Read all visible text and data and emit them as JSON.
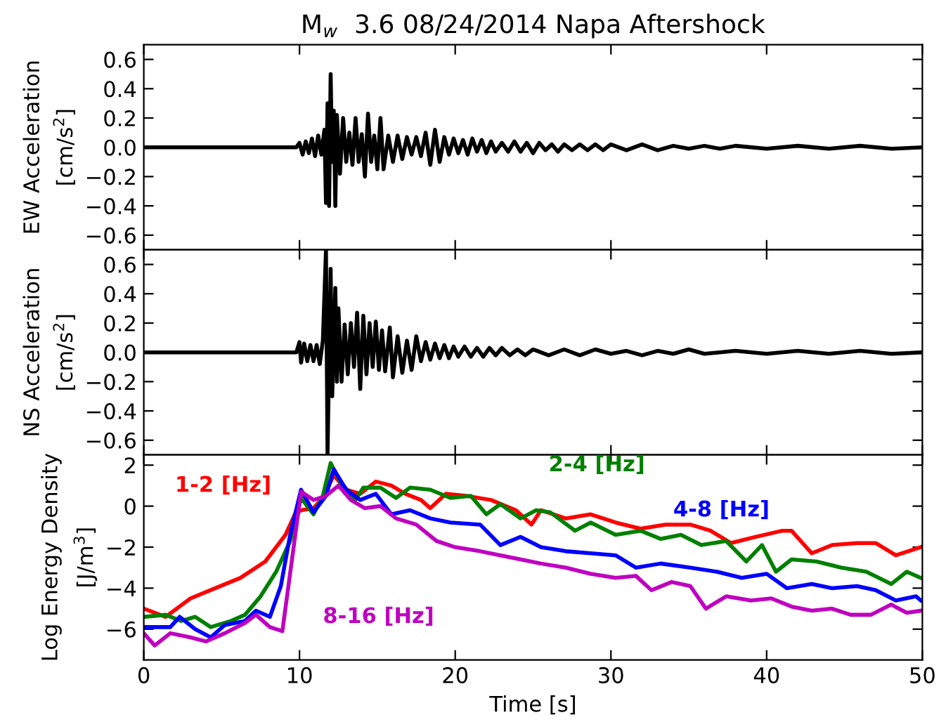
{
  "chart_data": [
    {
      "type": "line",
      "title": "M$_{w}$  3.6 08/24/2014 Napa Aftershock",
      "ylabel": "EW Acceleration\n[cm/s$^{2}$]",
      "xlim": [
        0,
        50
      ],
      "xticks": [
        0,
        10,
        20,
        30,
        40,
        50
      ],
      "ylim": [
        -0.7,
        0.7
      ],
      "yticks": [
        {
          "value": -0.6,
          "label": "−0.6"
        },
        {
          "value": -0.4,
          "label": "−0.4"
        },
        {
          "value": -0.2,
          "label": "−0.2"
        },
        {
          "value": 0,
          "label": "0.0"
        },
        {
          "value": 0.2,
          "label": "0.2"
        },
        {
          "value": 0.4,
          "label": "0.4"
        },
        {
          "value": 0.6,
          "label": "0.6"
        }
      ],
      "tick_labels": "y",
      "grid": false,
      "legend": false,
      "series": [
        {
          "color": "#000000",
          "x": [
            0,
            9.8,
            10.0,
            10.2,
            10.4,
            10.6,
            10.8,
            11.0,
            11.2,
            11.4,
            11.6,
            11.7,
            11.8,
            11.9,
            12.0,
            12.1,
            12.2,
            12.3,
            12.4,
            12.6,
            12.8,
            13.0,
            13.2,
            13.4,
            13.6,
            13.8,
            14.0,
            14.2,
            14.4,
            14.6,
            14.8,
            15.0,
            15.2,
            15.4,
            15.7,
            16.0,
            16.3,
            16.6,
            16.9,
            17.2,
            17.5,
            17.8,
            18.1,
            18.4,
            18.7,
            19.0,
            19.3,
            19.6,
            19.9,
            20.2,
            20.5,
            20.8,
            21.1,
            21.4,
            21.7,
            22.0,
            22.3,
            22.6,
            23.0,
            23.4,
            23.8,
            24.2,
            24.6,
            25.0,
            25.4,
            25.8,
            26.2,
            26.6,
            27.0,
            27.5,
            28.0,
            28.5,
            29.0,
            29.5,
            30,
            31,
            32,
            33,
            34,
            35,
            36,
            37,
            38,
            40,
            42,
            44,
            46,
            48,
            50
          ],
          "values": [
            0,
            0,
            0.03,
            -0.05,
            0.04,
            -0.04,
            0.06,
            -0.06,
            0.08,
            -0.05,
            0.12,
            -0.38,
            0.3,
            -0.4,
            0.5,
            -0.1,
            0.25,
            -0.4,
            0.22,
            -0.18,
            0.2,
            -0.1,
            0.1,
            -0.12,
            0.2,
            -0.1,
            0.09,
            -0.2,
            0.23,
            -0.1,
            0.08,
            -0.15,
            0.2,
            -0.15,
            0.08,
            -0.1,
            0.08,
            -0.08,
            0.07,
            -0.05,
            0.07,
            -0.06,
            0.1,
            -0.12,
            0.12,
            -0.1,
            0.07,
            -0.05,
            0.06,
            -0.04,
            0.05,
            -0.05,
            0.06,
            -0.03,
            0.05,
            -0.04,
            0.04,
            -0.03,
            0.03,
            -0.03,
            0.04,
            -0.03,
            0.03,
            -0.04,
            0.03,
            -0.02,
            0.02,
            -0.03,
            0.02,
            -0.02,
            0.02,
            -0.02,
            0.02,
            -0.02,
            0.02,
            -0.02,
            0.02,
            -0.02,
            0.01,
            -0.01,
            0.01,
            -0.01,
            0.01,
            -0.01,
            0.01,
            -0.01,
            0.01,
            -0.01,
            0
          ]
        }
      ]
    },
    {
      "type": "line",
      "ylabel": "NS Acceleration\n[cm/s$^{2}$]",
      "xlim": [
        0,
        50
      ],
      "xticks": [
        0,
        10,
        20,
        30,
        40,
        50
      ],
      "ylim": [
        -0.7,
        0.7
      ],
      "yticks": [
        {
          "value": -0.6,
          "label": "−0.6"
        },
        {
          "value": -0.4,
          "label": "−0.4"
        },
        {
          "value": -0.2,
          "label": "−0.2"
        },
        {
          "value": 0,
          "label": "0.0"
        },
        {
          "value": 0.2,
          "label": "0.2"
        },
        {
          "value": 0.4,
          "label": "0.4"
        },
        {
          "value": 0.6,
          "label": "0.6"
        }
      ],
      "tick_labels": "y",
      "grid": false,
      "legend": false,
      "series": [
        {
          "color": "#000000",
          "x": [
            0,
            9.8,
            10.0,
            10.1,
            10.3,
            10.5,
            10.7,
            10.9,
            11.1,
            11.3,
            11.5,
            11.7,
            11.8,
            12.0,
            12.1,
            12.3,
            12.4,
            12.5,
            12.7,
            12.9,
            13.1,
            13.3,
            13.5,
            13.7,
            13.9,
            14.1,
            14.3,
            14.5,
            14.7,
            14.9,
            15.1,
            15.3,
            15.5,
            15.8,
            16.0,
            16.3,
            16.6,
            16.9,
            17.2,
            17.5,
            17.8,
            18.1,
            18.4,
            18.7,
            19.0,
            19.3,
            19.6,
            19.9,
            20.2,
            20.6,
            21.0,
            21.4,
            21.8,
            22.2,
            22.6,
            23.0,
            23.5,
            24.0,
            24.5,
            25,
            26,
            27,
            28,
            29,
            30,
            31,
            32,
            33,
            34,
            35,
            36,
            38,
            40,
            42,
            44,
            46,
            48,
            50
          ],
          "values": [
            0,
            0,
            0.07,
            -0.07,
            0.06,
            -0.06,
            0.05,
            -0.06,
            0.05,
            -0.08,
            0.08,
            0.7,
            -0.7,
            0.57,
            -0.3,
            0.44,
            -0.2,
            0.3,
            -0.2,
            0.19,
            -0.15,
            0.2,
            -0.1,
            0.27,
            -0.25,
            0.25,
            -0.15,
            0.2,
            -0.1,
            0.21,
            -0.12,
            0.15,
            -0.13,
            0.17,
            -0.17,
            0.11,
            -0.14,
            0.08,
            -0.12,
            0.11,
            -0.06,
            0.07,
            -0.05,
            0.06,
            -0.04,
            0.05,
            -0.04,
            0.04,
            -0.03,
            0.04,
            -0.03,
            0.03,
            -0.03,
            0.03,
            -0.02,
            0.03,
            -0.02,
            0.02,
            -0.02,
            0.02,
            -0.02,
            0.02,
            -0.02,
            0.02,
            -0.01,
            0.01,
            -0.02,
            0.01,
            -0.01,
            0.02,
            -0.01,
            0.01,
            -0.01,
            0.01,
            -0.01,
            0.01,
            -0.01,
            0
          ]
        }
      ]
    },
    {
      "type": "line",
      "xlabel": "Time [s]",
      "ylabel": "Log Energy Density\n[J/m$^{3}$]",
      "xlim": [
        0,
        50
      ],
      "xticks": [
        0,
        10,
        20,
        30,
        40,
        50
      ],
      "ylim": [
        -7.5,
        2.5
      ],
      "yticks": [
        -6,
        -4,
        -2,
        0,
        2
      ],
      "grid": false,
      "legend": false,
      "series": [
        {
          "name": "1-2 [Hz]",
          "color": "#ff0000",
          "x": [
            0,
            1.4,
            3,
            4.6,
            6.2,
            7.8,
            9.1,
            9.7,
            10.1,
            10.9,
            11.5,
            12.2,
            13,
            13.9,
            14.9,
            15.9,
            16.8,
            17.8,
            18.4,
            19.4,
            20.7,
            22.3,
            23.9,
            24.9,
            25.5,
            27.1,
            28.7,
            30.3,
            31.9,
            33.5,
            35.1,
            36.4,
            37.7,
            39.3,
            41,
            41.6,
            42.9,
            44.2,
            45.8,
            47,
            48.3,
            49.9
          ],
          "values": [
            -5.0,
            -5.4,
            -4.5,
            -4.0,
            -3.5,
            -2.7,
            -1.4,
            -0.4,
            -0.2,
            -0.1,
            0.4,
            1.5,
            0.8,
            0.6,
            1.2,
            1.0,
            0.6,
            0.3,
            -0.1,
            0.6,
            0.5,
            0.3,
            -0.2,
            -0.9,
            -0.2,
            -0.6,
            -0.4,
            -0.8,
            -1.1,
            -0.9,
            -0.9,
            -1.2,
            -1.8,
            -1.5,
            -1.2,
            -1.2,
            -2.3,
            -1.9,
            -1.8,
            -1.8,
            -2.4,
            -2.0
          ]
        },
        {
          "name": "2-4 [Hz]",
          "color": "#008000",
          "x": [
            0,
            1.4,
            2.4,
            3.3,
            4.3,
            5.6,
            6.5,
            7.5,
            8.5,
            9.4,
            10.1,
            10.9,
            11.5,
            12,
            12.6,
            13.6,
            14.1,
            15.2,
            16.2,
            17.1,
            18.4,
            19.7,
            21,
            22,
            22.9,
            24.2,
            25.2,
            26.1,
            27.7,
            28.7,
            30.3,
            31.9,
            33.2,
            34.5,
            35.8,
            37.4,
            38.7,
            39.7,
            40.6,
            41.6,
            43.2,
            44.8,
            46.4,
            48,
            49,
            49.9
          ],
          "values": [
            -5.4,
            -5.3,
            -5.6,
            -5.4,
            -5.9,
            -5.6,
            -5.3,
            -4.4,
            -3.2,
            -1.7,
            0.4,
            -0.4,
            0.5,
            2.1,
            1.2,
            0.3,
            0.9,
            0.9,
            0.4,
            0.9,
            0.8,
            0.4,
            0.5,
            -0.4,
            0.1,
            -0.6,
            -0.2,
            -0.3,
            -1.2,
            -0.8,
            -1.4,
            -1.2,
            -1.6,
            -1.4,
            -1.9,
            -1.7,
            -2.7,
            -1.9,
            -3.2,
            -2.6,
            -2.7,
            -3.0,
            -3.2,
            -3.8,
            -3.2,
            -3.5
          ]
        },
        {
          "name": "4-8 [Hz]",
          "color": "#0000ff",
          "x": [
            0,
            1.7,
            2.3,
            3.3,
            4.3,
            5.2,
            6.5,
            7.2,
            8.1,
            8.8,
            9.4,
            10.1,
            10.9,
            11.7,
            12.2,
            13,
            13.9,
            14.9,
            15.9,
            17.1,
            18.4,
            19.7,
            21.6,
            22.9,
            24.2,
            25.5,
            27.1,
            28.7,
            30.3,
            31.6,
            33.2,
            35.1,
            36.8,
            38.4,
            40,
            41.3,
            42.9,
            44.2,
            45.8,
            47,
            48.3,
            49.6,
            49.9
          ],
          "values": [
            -5.9,
            -5.9,
            -5.4,
            -6.0,
            -6.4,
            -5.8,
            -5.6,
            -5.1,
            -5.4,
            -3.9,
            -1.4,
            0.8,
            -0.3,
            0.5,
            1.8,
            0.8,
            0.3,
            0.6,
            -0.4,
            -0.2,
            -0.6,
            -0.8,
            -0.9,
            -1.9,
            -1.5,
            -2.0,
            -2.2,
            -2.3,
            -2.4,
            -3.0,
            -2.8,
            -3.0,
            -3.2,
            -3.5,
            -3.3,
            -4.0,
            -3.8,
            -4.0,
            -3.9,
            -4.1,
            -4.6,
            -4.4,
            -4.6
          ]
        },
        {
          "name": "8-16 [Hz]",
          "color": "#bf00bf",
          "x": [
            0,
            0.7,
            1.7,
            3,
            4,
            5.2,
            6.5,
            7.2,
            8.1,
            8.9,
            10.1,
            10.9,
            11.7,
            12.5,
            13.3,
            14.2,
            15.2,
            16.2,
            17.5,
            18.8,
            20,
            21.6,
            22.9,
            24.2,
            25.5,
            27.1,
            28.7,
            30.3,
            31.6,
            32.6,
            33.9,
            35.1,
            36.1,
            37.4,
            39,
            40.3,
            41.6,
            42.9,
            44.2,
            45.4,
            46.7,
            48,
            49,
            49.9
          ],
          "values": [
            -6.2,
            -6.8,
            -6.2,
            -6.4,
            -6.6,
            -6.2,
            -5.7,
            -5.3,
            -5.9,
            -6.1,
            0.7,
            0.3,
            0.5,
            1.0,
            0.3,
            -0.1,
            0.0,
            -0.6,
            -0.9,
            -1.7,
            -2.0,
            -2.2,
            -2.4,
            -2.6,
            -2.8,
            -3.0,
            -3.3,
            -3.5,
            -3.4,
            -4.1,
            -3.7,
            -3.9,
            -5.0,
            -4.4,
            -4.6,
            -4.5,
            -4.9,
            -5.1,
            -5.0,
            -5.3,
            -5.3,
            -4.8,
            -5.2,
            -5.1
          ]
        }
      ]
    }
  ]
}
